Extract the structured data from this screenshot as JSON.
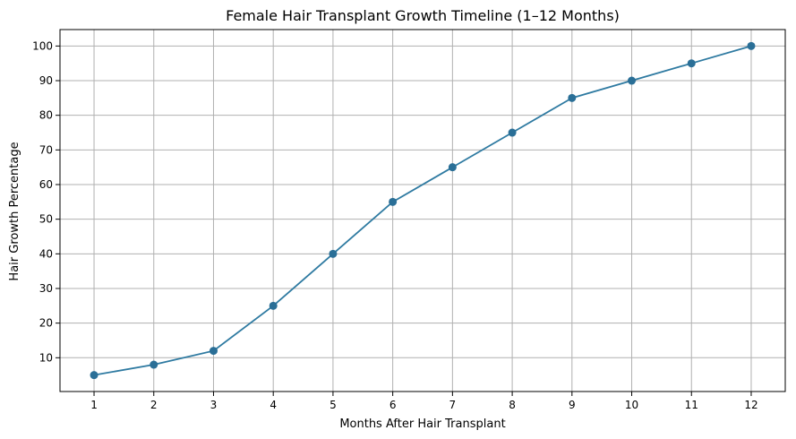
{
  "chart_data": {
    "type": "line",
    "title": "Female Hair Transplant Growth Timeline (1–12 Months)",
    "xlabel": "Months After Hair Transplant",
    "ylabel": "Hair Growth Percentage",
    "x": [
      1,
      2,
      3,
      4,
      5,
      6,
      7,
      8,
      9,
      10,
      11,
      12
    ],
    "series": [
      {
        "values": [
          5,
          8,
          12,
          25,
          40,
          55,
          65,
          75,
          85,
          90,
          95,
          100
        ]
      }
    ],
    "xticks": [
      "1",
      "2",
      "3",
      "4",
      "5",
      "6",
      "7",
      "8",
      "9",
      "10",
      "11",
      "12"
    ],
    "yticks": [
      "10",
      "20",
      "30",
      "40",
      "50",
      "60",
      "70",
      "80",
      "90",
      "100"
    ],
    "xlim": [
      0.43,
      12.57
    ],
    "ylim": [
      0.25,
      104.75
    ],
    "grid": true,
    "line_color": "#2e7aa1",
    "marker_color": "#2a6f97"
  }
}
